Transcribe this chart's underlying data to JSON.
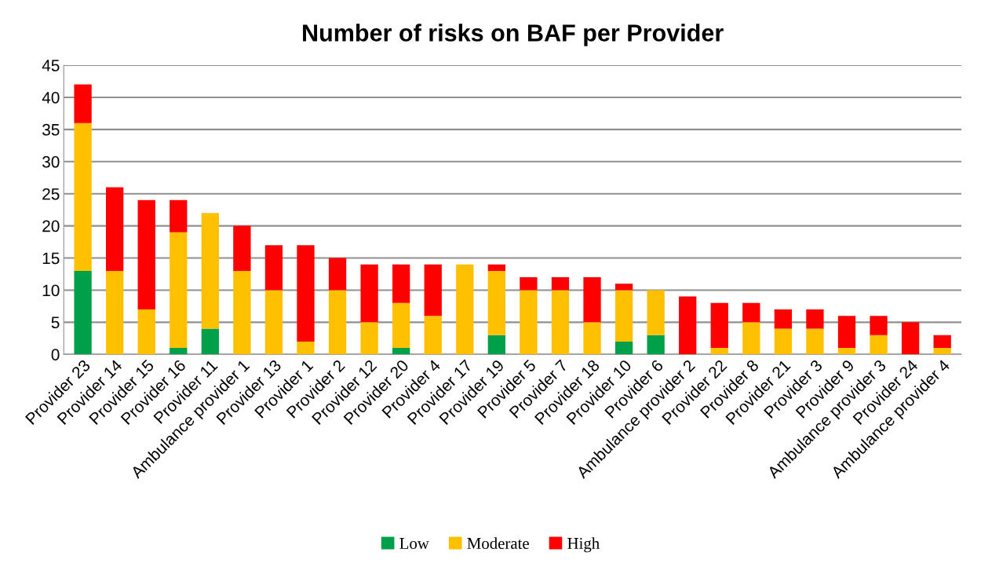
{
  "chart_data": {
    "type": "bar",
    "title": "Number of risks on BAF per Provider",
    "stacked": true,
    "categories": [
      "Provider 23",
      "Provider 14",
      "Provider 15",
      "Provider 16",
      "Provider 11",
      "Ambulance provider 1",
      "Provider 13",
      "Provider 1",
      "Provider 2",
      "Provider 12",
      "Provider 20",
      "Provider 4",
      "Provider 17",
      "Provider 19",
      "Provider 5",
      "Provider 7",
      "Provider 18",
      "Provider 10",
      "Provider 6",
      "Ambulance provider 2",
      "Provider 22",
      "Provider 8",
      "Provider 21",
      "Provider 3",
      "Provider 9",
      "Ambulance provider 3",
      "Provider 24",
      "Ambulance provider 4"
    ],
    "series": [
      {
        "name": "Low",
        "color": "#00a04a",
        "values": [
          13,
          0,
          0,
          1,
          4,
          0,
          0,
          0,
          0,
          0,
          1,
          0,
          0,
          3,
          0,
          0,
          0,
          2,
          3,
          0,
          0,
          0,
          0,
          0,
          0,
          0,
          0,
          0
        ]
      },
      {
        "name": "Moderate",
        "color": "#ffc000",
        "values": [
          23,
          13,
          7,
          18,
          18,
          13,
          10,
          2,
          10,
          5,
          7,
          6,
          14,
          10,
          10,
          10,
          5,
          8,
          7,
          0,
          1,
          5,
          4,
          4,
          1,
          3,
          0,
          1
        ]
      },
      {
        "name": "High",
        "color": "#ff0000",
        "values": [
          6,
          13,
          17,
          5,
          0,
          7,
          7,
          15,
          5,
          9,
          6,
          8,
          0,
          1,
          2,
          2,
          7,
          1,
          0,
          9,
          7,
          3,
          3,
          3,
          5,
          3,
          5,
          2
        ]
      }
    ],
    "ylim": [
      0,
      45
    ],
    "yticks": [
      0,
      5,
      10,
      15,
      20,
      25,
      30,
      35,
      40,
      45
    ],
    "grid": "y",
    "legend": "bottom"
  }
}
